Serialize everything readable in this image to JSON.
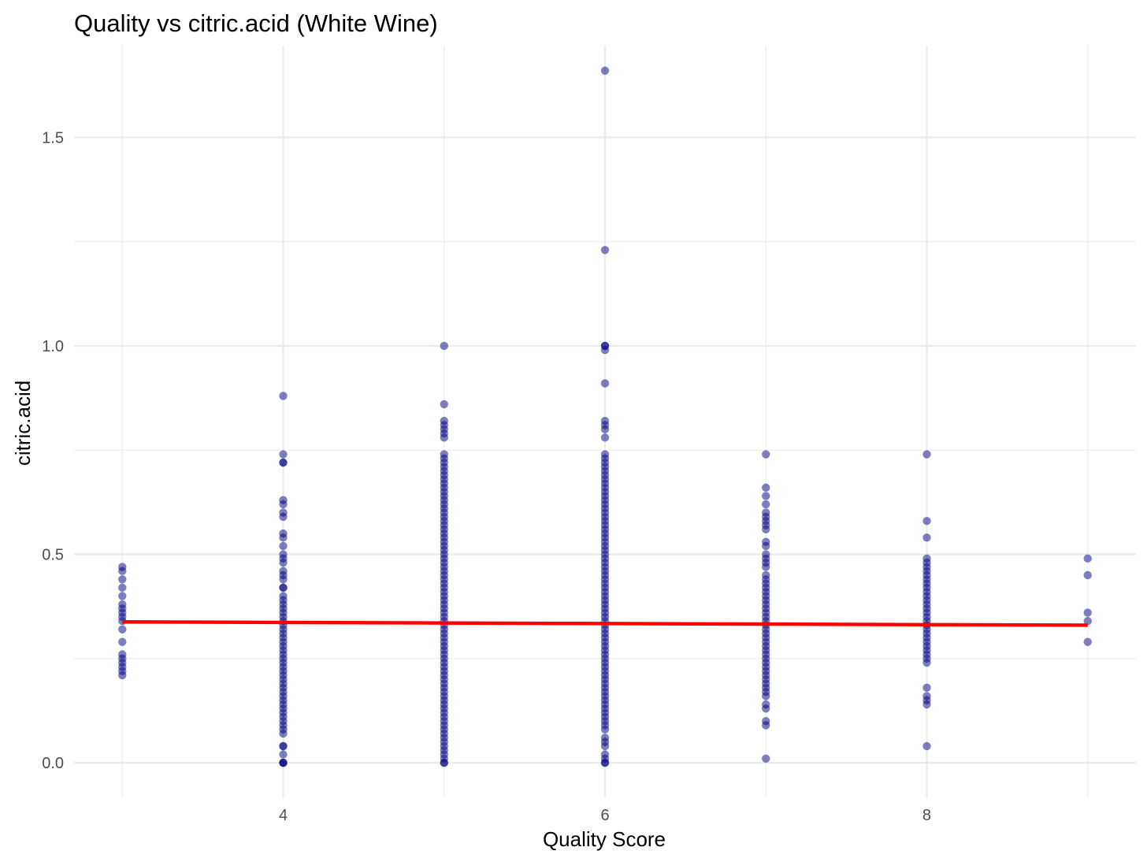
{
  "chart_data": {
    "type": "scatter",
    "title": "Quality vs citric.acid (White Wine)",
    "xlabel": "Quality Score",
    "ylabel": "citric.acid",
    "xlim": [
      2.7,
      9.3
    ],
    "ylim": [
      -0.083,
      1.72
    ],
    "x_ticks": [
      4,
      6,
      8
    ],
    "x_tick_labels": [
      "4",
      "6",
      "8"
    ],
    "y_ticks": [
      0.0,
      0.5,
      1.0,
      1.5
    ],
    "y_tick_labels": [
      "0.0",
      "0.5",
      "1.0",
      "1.5"
    ],
    "x_minor_gridlines": [
      3,
      5,
      7,
      9
    ],
    "y_minor_gridlines": [
      0.25,
      0.75,
      1.25
    ],
    "grid": true,
    "legend": "none",
    "point_color": "#000080",
    "point_opacity": 0.5,
    "trend_line_color": "#ff0000",
    "series": [
      {
        "x": 3,
        "values": [
          0.21,
          0.22,
          0.23,
          0.24,
          0.25,
          0.26,
          0.29,
          0.32,
          0.34,
          0.35,
          0.36,
          0.37,
          0.38,
          0.4,
          0.42,
          0.44,
          0.46,
          0.47
        ]
      },
      {
        "x": 4,
        "values": [
          0.0,
          0.0,
          0.0,
          0.02,
          0.04,
          0.04,
          0.07,
          0.08,
          0.09,
          0.1,
          0.11,
          0.12,
          0.13,
          0.14,
          0.15,
          0.16,
          0.17,
          0.18,
          0.19,
          0.2,
          0.21,
          0.22,
          0.23,
          0.24,
          0.25,
          0.26,
          0.27,
          0.28,
          0.29,
          0.3,
          0.31,
          0.32,
          0.33,
          0.34,
          0.35,
          0.36,
          0.37,
          0.38,
          0.39,
          0.4,
          0.42,
          0.42,
          0.44,
          0.45,
          0.46,
          0.48,
          0.49,
          0.5,
          0.52,
          0.54,
          0.55,
          0.59,
          0.6,
          0.62,
          0.63,
          0.72,
          0.72,
          0.74,
          0.88
        ]
      },
      {
        "x": 5,
        "values": [
          0.0,
          0.0,
          0.01,
          0.02,
          0.03,
          0.04,
          0.05,
          0.06,
          0.07,
          0.08,
          0.09,
          0.1,
          0.11,
          0.12,
          0.13,
          0.14,
          0.15,
          0.16,
          0.17,
          0.18,
          0.19,
          0.2,
          0.21,
          0.22,
          0.23,
          0.24,
          0.25,
          0.26,
          0.27,
          0.28,
          0.29,
          0.3,
          0.31,
          0.32,
          0.33,
          0.34,
          0.35,
          0.36,
          0.37,
          0.38,
          0.39,
          0.4,
          0.41,
          0.42,
          0.43,
          0.44,
          0.45,
          0.46,
          0.47,
          0.48,
          0.49,
          0.5,
          0.51,
          0.52,
          0.53,
          0.54,
          0.55,
          0.56,
          0.57,
          0.58,
          0.59,
          0.6,
          0.61,
          0.62,
          0.63,
          0.64,
          0.65,
          0.66,
          0.67,
          0.68,
          0.69,
          0.7,
          0.71,
          0.72,
          0.73,
          0.74,
          0.78,
          0.79,
          0.8,
          0.81,
          0.82,
          0.86,
          1.0
        ]
      },
      {
        "x": 6,
        "values": [
          0.0,
          0.0,
          0.01,
          0.02,
          0.04,
          0.05,
          0.06,
          0.08,
          0.09,
          0.1,
          0.11,
          0.12,
          0.13,
          0.14,
          0.15,
          0.16,
          0.17,
          0.18,
          0.19,
          0.2,
          0.21,
          0.22,
          0.23,
          0.24,
          0.25,
          0.26,
          0.27,
          0.28,
          0.29,
          0.3,
          0.31,
          0.32,
          0.33,
          0.34,
          0.35,
          0.36,
          0.37,
          0.38,
          0.39,
          0.4,
          0.41,
          0.42,
          0.43,
          0.44,
          0.45,
          0.46,
          0.47,
          0.48,
          0.49,
          0.5,
          0.51,
          0.52,
          0.53,
          0.54,
          0.55,
          0.56,
          0.57,
          0.58,
          0.59,
          0.6,
          0.61,
          0.62,
          0.63,
          0.64,
          0.65,
          0.66,
          0.67,
          0.68,
          0.69,
          0.7,
          0.71,
          0.72,
          0.73,
          0.74,
          0.78,
          0.8,
          0.81,
          0.82,
          0.91,
          0.99,
          1.0,
          1.0,
          1.23,
          1.66
        ]
      },
      {
        "x": 7,
        "values": [
          0.01,
          0.09,
          0.1,
          0.13,
          0.14,
          0.16,
          0.17,
          0.18,
          0.19,
          0.2,
          0.21,
          0.22,
          0.23,
          0.24,
          0.25,
          0.26,
          0.27,
          0.28,
          0.29,
          0.3,
          0.31,
          0.32,
          0.33,
          0.34,
          0.35,
          0.36,
          0.37,
          0.38,
          0.39,
          0.4,
          0.41,
          0.42,
          0.43,
          0.44,
          0.45,
          0.47,
          0.48,
          0.49,
          0.5,
          0.52,
          0.53,
          0.56,
          0.57,
          0.58,
          0.59,
          0.6,
          0.62,
          0.64,
          0.66,
          0.74
        ]
      },
      {
        "x": 8,
        "values": [
          0.04,
          0.14,
          0.15,
          0.16,
          0.18,
          0.24,
          0.25,
          0.26,
          0.27,
          0.28,
          0.29,
          0.3,
          0.31,
          0.32,
          0.33,
          0.34,
          0.35,
          0.36,
          0.37,
          0.38,
          0.39,
          0.4,
          0.41,
          0.42,
          0.43,
          0.44,
          0.45,
          0.46,
          0.47,
          0.48,
          0.49,
          0.54,
          0.58,
          0.74
        ]
      },
      {
        "x": 9,
        "values": [
          0.29,
          0.34,
          0.36,
          0.45,
          0.49
        ]
      }
    ],
    "trend_line": {
      "x": [
        3,
        9
      ],
      "y": [
        0.338,
        0.33
      ]
    }
  }
}
